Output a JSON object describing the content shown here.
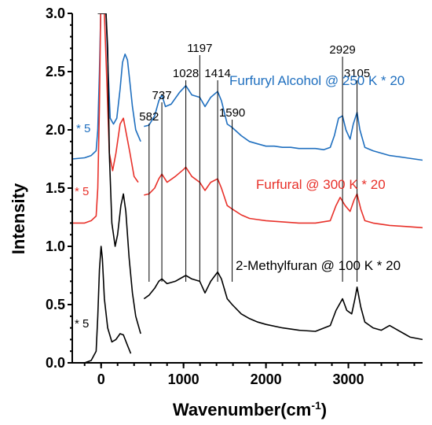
{
  "chart_data": {
    "type": "line",
    "xlabel": "Wavenumber(cm",
    "xlabel_sup": "-1",
    "xlabel_close": ")",
    "ylabel": "Intensity",
    "xlim": [
      -350,
      3900
    ],
    "ylim": [
      0,
      3.0
    ],
    "x_ticks": [
      0,
      1000,
      2000,
      3000
    ],
    "y_ticks": [
      0.0,
      0.5,
      1.0,
      1.5,
      2.0,
      2.5,
      3.0
    ],
    "y_tick_labels": [
      "0.0",
      "0.5",
      "1.0",
      "1.5",
      "2.0",
      "2.5",
      "3.0"
    ],
    "x_tick_labels": [
      "0",
      "1000",
      "2000",
      "3000"
    ],
    "minor_x_step": 200,
    "minor_y_step": 0.1,
    "series": [
      {
        "name": "Furfuryl Alcohol @ 250 K * 20",
        "color": "#1f6fbf",
        "multiplier_label": "* 5",
        "low_region": [
          [
            -350,
            1.75
          ],
          [
            -200,
            1.76
          ],
          [
            -120,
            1.78
          ],
          [
            -60,
            1.82
          ],
          [
            -40,
            2.0
          ],
          [
            -20,
            2.5
          ],
          [
            -5,
            3.0
          ],
          [
            60,
            3.0
          ],
          [
            80,
            2.6
          ],
          [
            110,
            2.1
          ],
          [
            150,
            2.05
          ],
          [
            190,
            2.1
          ],
          [
            230,
            2.35
          ],
          [
            260,
            2.58
          ],
          [
            290,
            2.65
          ],
          [
            320,
            2.6
          ],
          [
            350,
            2.4
          ],
          [
            380,
            2.2
          ],
          [
            420,
            2.0
          ],
          [
            480,
            1.9
          ]
        ],
        "high_region": [
          [
            520,
            2.03
          ],
          [
            580,
            2.04
          ],
          [
            650,
            2.12
          ],
          [
            700,
            2.25
          ],
          [
            737,
            2.3
          ],
          [
            780,
            2.2
          ],
          [
            850,
            2.22
          ],
          [
            950,
            2.32
          ],
          [
            1028,
            2.38
          ],
          [
            1100,
            2.3
          ],
          [
            1197,
            2.28
          ],
          [
            1260,
            2.2
          ],
          [
            1330,
            2.28
          ],
          [
            1414,
            2.33
          ],
          [
            1460,
            2.25
          ],
          [
            1530,
            2.05
          ],
          [
            1590,
            2.02
          ],
          [
            1700,
            1.95
          ],
          [
            1800,
            1.9
          ],
          [
            1900,
            1.88
          ],
          [
            2000,
            1.86
          ],
          [
            2100,
            1.86
          ],
          [
            2200,
            1.85
          ],
          [
            2300,
            1.85
          ],
          [
            2400,
            1.84
          ],
          [
            2500,
            1.84
          ],
          [
            2600,
            1.84
          ],
          [
            2700,
            1.83
          ],
          [
            2780,
            1.85
          ],
          [
            2830,
            1.95
          ],
          [
            2880,
            2.1
          ],
          [
            2929,
            2.12
          ],
          [
            2970,
            2.0
          ],
          [
            3020,
            1.92
          ],
          [
            3060,
            2.05
          ],
          [
            3105,
            2.15
          ],
          [
            3140,
            2.0
          ],
          [
            3200,
            1.85
          ],
          [
            3300,
            1.82
          ],
          [
            3400,
            1.8
          ],
          [
            3500,
            1.78
          ],
          [
            3600,
            1.77
          ],
          [
            3700,
            1.76
          ],
          [
            3800,
            1.75
          ],
          [
            3900,
            1.74
          ]
        ]
      },
      {
        "name": "Furfural @ 300 K * 20",
        "color": "#e8312a",
        "multiplier_label": "* 5",
        "low_region": [
          [
            -350,
            1.2
          ],
          [
            -200,
            1.2
          ],
          [
            -120,
            1.22
          ],
          [
            -60,
            1.26
          ],
          [
            -40,
            1.5
          ],
          [
            -20,
            2.2
          ],
          [
            -5,
            3.0
          ],
          [
            40,
            3.0
          ],
          [
            70,
            2.4
          ],
          [
            100,
            1.8
          ],
          [
            140,
            1.65
          ],
          [
            180,
            1.8
          ],
          [
            230,
            2.05
          ],
          [
            270,
            2.1
          ],
          [
            310,
            1.95
          ],
          [
            350,
            1.8
          ],
          [
            400,
            1.6
          ],
          [
            450,
            1.55
          ]
        ],
        "high_region": [
          [
            520,
            1.44
          ],
          [
            580,
            1.45
          ],
          [
            650,
            1.5
          ],
          [
            700,
            1.58
          ],
          [
            737,
            1.62
          ],
          [
            800,
            1.55
          ],
          [
            900,
            1.6
          ],
          [
            1000,
            1.66
          ],
          [
            1028,
            1.68
          ],
          [
            1100,
            1.6
          ],
          [
            1197,
            1.55
          ],
          [
            1260,
            1.48
          ],
          [
            1330,
            1.55
          ],
          [
            1414,
            1.58
          ],
          [
            1460,
            1.5
          ],
          [
            1530,
            1.35
          ],
          [
            1590,
            1.32
          ],
          [
            1700,
            1.27
          ],
          [
            1800,
            1.24
          ],
          [
            1900,
            1.23
          ],
          [
            2000,
            1.22
          ],
          [
            2200,
            1.21
          ],
          [
            2400,
            1.2
          ],
          [
            2600,
            1.2
          ],
          [
            2780,
            1.22
          ],
          [
            2850,
            1.35
          ],
          [
            2900,
            1.42
          ],
          [
            2960,
            1.35
          ],
          [
            3020,
            1.3
          ],
          [
            3070,
            1.4
          ],
          [
            3105,
            1.45
          ],
          [
            3150,
            1.32
          ],
          [
            3200,
            1.22
          ],
          [
            3300,
            1.2
          ],
          [
            3500,
            1.18
          ],
          [
            3700,
            1.17
          ],
          [
            3900,
            1.16
          ]
        ]
      },
      {
        "name": "2-Methylfuran @ 100 K * 20",
        "color": "#000000",
        "multiplier_label": "* 5",
        "low_region": [
          [
            -350,
            0.0
          ],
          [
            -200,
            0.0
          ],
          [
            -120,
            0.02
          ],
          [
            -60,
            0.1
          ],
          [
            -40,
            0.4
          ],
          [
            -20,
            0.8
          ],
          [
            0,
            1.0
          ],
          [
            15,
            0.9
          ],
          [
            40,
            0.55
          ],
          [
            80,
            0.3
          ],
          [
            130,
            0.18
          ],
          [
            180,
            0.2
          ],
          [
            230,
            0.25
          ],
          [
            270,
            0.24
          ],
          [
            320,
            0.15
          ],
          [
            360,
            0.08
          ]
        ],
        "tall_region": [
          [
            -40,
            3.0
          ],
          [
            0,
            3.0
          ],
          [
            60,
            3.0
          ],
          [
            80,
            2.7
          ],
          [
            100,
            1.8
          ],
          [
            130,
            1.2
          ],
          [
            170,
            1.0
          ],
          [
            200,
            1.1
          ],
          [
            240,
            1.35
          ],
          [
            270,
            1.45
          ],
          [
            300,
            1.3
          ],
          [
            340,
            0.9
          ],
          [
            380,
            0.6
          ],
          [
            420,
            0.4
          ],
          [
            480,
            0.25
          ]
        ],
        "high_region": [
          [
            520,
            0.55
          ],
          [
            580,
            0.58
          ],
          [
            650,
            0.64
          ],
          [
            700,
            0.7
          ],
          [
            737,
            0.72
          ],
          [
            800,
            0.68
          ],
          [
            900,
            0.7
          ],
          [
            1000,
            0.74
          ],
          [
            1028,
            0.75
          ],
          [
            1100,
            0.72
          ],
          [
            1197,
            0.7
          ],
          [
            1260,
            0.6
          ],
          [
            1330,
            0.7
          ],
          [
            1414,
            0.78
          ],
          [
            1460,
            0.72
          ],
          [
            1530,
            0.55
          ],
          [
            1590,
            0.5
          ],
          [
            1700,
            0.42
          ],
          [
            1800,
            0.38
          ],
          [
            1900,
            0.35
          ],
          [
            2000,
            0.33
          ],
          [
            2200,
            0.3
          ],
          [
            2400,
            0.28
          ],
          [
            2600,
            0.27
          ],
          [
            2780,
            0.32
          ],
          [
            2850,
            0.45
          ],
          [
            2929,
            0.55
          ],
          [
            2980,
            0.45
          ],
          [
            3040,
            0.42
          ],
          [
            3080,
            0.55
          ],
          [
            3105,
            0.65
          ],
          [
            3150,
            0.48
          ],
          [
            3200,
            0.35
          ],
          [
            3300,
            0.3
          ],
          [
            3400,
            0.28
          ],
          [
            3500,
            0.32
          ],
          [
            3550,
            0.3
          ],
          [
            3650,
            0.26
          ],
          [
            3750,
            0.22
          ],
          [
            3900,
            0.2
          ]
        ]
      }
    ],
    "series_labels": [
      {
        "text": "Furfuryl Alcohol @ 250 K * 20",
        "color": "#1f6fbf"
      },
      {
        "text": "Furfural @ 300 K * 20",
        "color": "#e8312a"
      },
      {
        "text": "2-Methylfuran @ 100 K * 20",
        "color": "#000000"
      }
    ],
    "multiplier_labels": [
      {
        "text": "* 5",
        "color": "#1f6fbf"
      },
      {
        "text": "* 5",
        "color": "#e8312a"
      },
      {
        "text": "* 5",
        "color": "#000000"
      }
    ],
    "peak_markers": [
      {
        "label": "582",
        "x": 582
      },
      {
        "label": "737",
        "x": 737
      },
      {
        "label": "1028",
        "x": 1028
      },
      {
        "label": "1197",
        "x": 1197
      },
      {
        "label": "1414",
        "x": 1414
      },
      {
        "label": "1590",
        "x": 1590
      },
      {
        "label": "2929",
        "x": 2929
      },
      {
        "label": "3105",
        "x": 3105
      }
    ]
  }
}
